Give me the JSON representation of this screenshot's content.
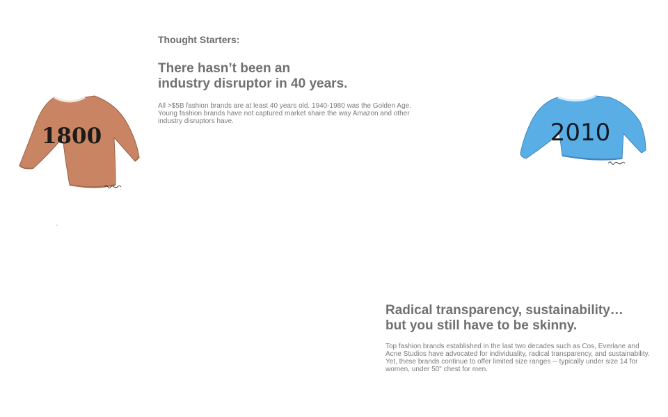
{
  "section": {
    "kicker": "Thought Starters:"
  },
  "insight_1": {
    "headline_line1": "There hasn’t been an",
    "headline_line2": "industry disruptor in 40 years.",
    "body": "All >$5B fashion brands are at least 40 years old. 1940-1980 was the Golden Age. Young fashion brands have not captured market share the way Amazon and other industry disruptors have."
  },
  "insight_2": {
    "headline_line1": "Radical transparency, sustainability…",
    "headline_line2": "but you still have to be skinny.",
    "body": "Top fashion brands established in the last two decades such as Cos, Everlane and Acne Studios have advocated for individuality, radical transparency, and sustainability. Yet, these brands continue to offer limited size ranges -- typically under size 14 for women, under 50\" chest for men."
  },
  "illustrations": {
    "sweater_left": {
      "year": "1800",
      "icon": "sweater-illustration-icon",
      "color": "#c98563",
      "text_color": "#1e1a17"
    },
    "sweater_right": {
      "year": "2010",
      "icon": "sweater-illustration-icon",
      "color": "#5aaee6",
      "text_color": "#141820"
    }
  }
}
